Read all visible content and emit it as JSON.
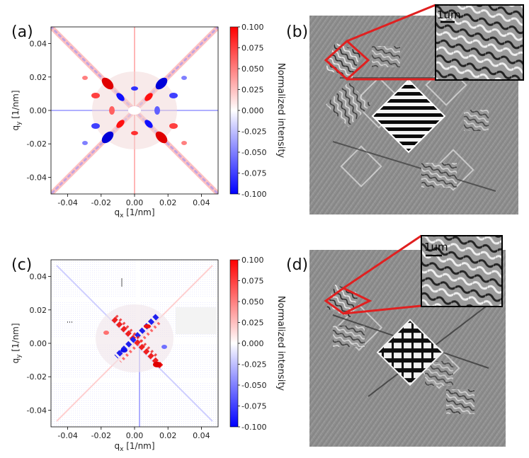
{
  "panels": {
    "a": {
      "label": "(a)"
    },
    "b": {
      "label": "(b)"
    },
    "c": {
      "label": "(c)"
    },
    "d": {
      "label": "(d)"
    }
  },
  "chart_data": [
    {
      "type": "heatmap",
      "panel": "(a)",
      "xlabel": "q_x [1/nm]",
      "ylabel": "q_y [1/nm]",
      "xlim": [
        -0.05,
        0.05
      ],
      "ylim": [
        -0.05,
        0.05
      ],
      "x_ticks": [
        "-0.04",
        "-0.02",
        "0.00",
        "0.02",
        "0.04"
      ],
      "y_ticks": [
        "0.04",
        "0.02",
        "0.00",
        "-0.02",
        "-0.04"
      ],
      "colorbar": {
        "label": "Normalized intensity",
        "range": [
          -0.1,
          0.1
        ],
        "ticks": [
          "0.100",
          "0.075",
          "0.050",
          "0.025",
          "0.000",
          "-0.025",
          "-0.050",
          "-0.075",
          "-0.100"
        ]
      },
      "colormap": {
        "low": "#0000ff",
        "mid": "#ffffff",
        "high": "#ff0000"
      }
    },
    {
      "type": "heatmap",
      "panel": "(c)",
      "xlabel": "q_x [1/nm]",
      "ylabel": "q_y [1/nm]",
      "xlim": [
        -0.05,
        0.05
      ],
      "ylim": [
        -0.05,
        0.05
      ],
      "x_ticks": [
        "-0.04",
        "-0.02",
        "0.00",
        "0.02",
        "0.04"
      ],
      "y_ticks": [
        "0.04",
        "0.02",
        "0.00",
        "-0.02",
        "-0.04"
      ],
      "colorbar": {
        "label": "Normalized intensity",
        "range": [
          -0.1,
          0.1
        ],
        "ticks": [
          "0.100",
          "0.075",
          "0.050",
          "0.025",
          "0.000",
          "-0.025",
          "-0.050",
          "-0.075",
          "-0.100"
        ]
      },
      "colormap": {
        "low": "#0000ff",
        "mid": "#ffffff",
        "high": "#ff0000"
      }
    }
  ],
  "axes": {
    "xlabel_main": "q",
    "xlabel_sub": "x",
    "xlabel_unit": " [1/nm]",
    "ylabel_main": "q",
    "ylabel_sub": "y",
    "ylabel_unit": " [1/nm]",
    "x_ticks": [
      "-0.04",
      "-0.02",
      "0.00",
      "0.02",
      "0.04"
    ],
    "y_ticks": [
      "0.04",
      "0.02",
      "0.00",
      "-0.02",
      "-0.04"
    ]
  },
  "colorbar": {
    "label": "Normalized intensity",
    "ticks": [
      "0.100",
      "0.075",
      "0.050",
      "0.025",
      "0.000",
      "-0.025",
      "-0.050",
      "-0.075",
      "-0.100"
    ]
  },
  "insets": {
    "b_scalebar": "1um",
    "d_scalebar": "1um"
  },
  "colors": {
    "highlight": "#e02020",
    "gray_background": "#8c8c8c",
    "positive": "#ff0000",
    "negative": "#0000ff"
  }
}
